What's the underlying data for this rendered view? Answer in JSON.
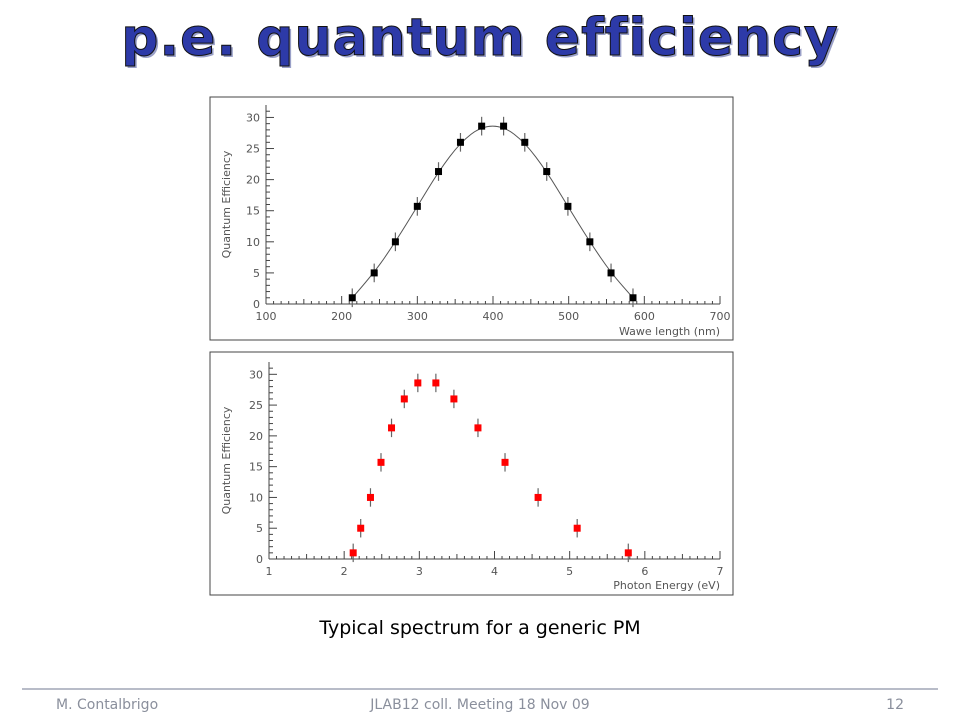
{
  "slide": {
    "title": "p.e. quantum efficiency",
    "caption": "Typical spectrum for a generic PM",
    "footer": {
      "author": "M. Contalbrigo",
      "event": "JLAB12 coll. Meeting 18 Nov 09",
      "page_number": "12"
    }
  },
  "colors": {
    "title": "#2d3aa8",
    "series_top": "#000000",
    "series_bottom": "#ff0000"
  },
  "chart_data": [
    {
      "type": "line",
      "title": "",
      "xlabel": "Wawe length (nm)",
      "ylabel": "Quantum Efficiency",
      "xlim": [
        100,
        700
      ],
      "ylim": [
        0,
        32
      ],
      "xticks": [
        100,
        200,
        300,
        400,
        500,
        600,
        700
      ],
      "yticks": [
        0,
        5,
        10,
        15,
        20,
        25,
        30
      ],
      "xtick_labels": [
        "100",
        "200",
        "300",
        "400",
        "500",
        "600",
        "700"
      ],
      "ytick_labels": [
        "0",
        "5",
        "10",
        "15",
        "20",
        "25",
        "30"
      ],
      "grid": false,
      "series": [
        {
          "x": [
            214,
            243,
            271,
            300,
            328,
            357,
            385,
            414,
            442,
            471,
            499,
            528,
            556,
            585
          ],
          "y": [
            1,
            5,
            10,
            15.7,
            21.3,
            26,
            28.6,
            28.6,
            26,
            21.3,
            15.7,
            10,
            5,
            1
          ],
          "yerr": [
            1.5,
            1.5,
            1.5,
            1.5,
            1.5,
            1.5,
            1.5,
            1.5,
            1.5,
            1.5,
            1.5,
            1.5,
            1.5,
            1.5
          ],
          "curve": true
        }
      ]
    },
    {
      "type": "scatter",
      "title": "",
      "xlabel": "Photon Energy (eV)",
      "ylabel": "Quantum Efficiency",
      "xlim": [
        1,
        7
      ],
      "ylim": [
        0,
        32
      ],
      "xticks": [
        1,
        2,
        3,
        4,
        5,
        6,
        7
      ],
      "yticks": [
        0,
        5,
        10,
        15,
        20,
        25,
        30
      ],
      "xtick_labels": [
        "1",
        "2",
        "3",
        "4",
        "5",
        "6",
        "7"
      ],
      "ytick_labels": [
        "0",
        "5",
        "10",
        "15",
        "20",
        "25",
        "30"
      ],
      "grid": false,
      "series": [
        {
          "x": [
            2.12,
            2.22,
            2.35,
            2.49,
            2.63,
            2.8,
            2.98,
            3.22,
            3.46,
            3.78,
            4.14,
            4.58,
            5.1,
            5.78
          ],
          "y": [
            1,
            5,
            10,
            15.7,
            21.3,
            26,
            28.6,
            28.6,
            26,
            21.3,
            15.7,
            10,
            5,
            1
          ],
          "yerr": [
            1.5,
            1.5,
            1.5,
            1.5,
            1.5,
            1.5,
            1.5,
            1.5,
            1.5,
            1.5,
            1.5,
            1.5,
            1.5,
            1.5
          ],
          "curve": false
        }
      ]
    }
  ]
}
